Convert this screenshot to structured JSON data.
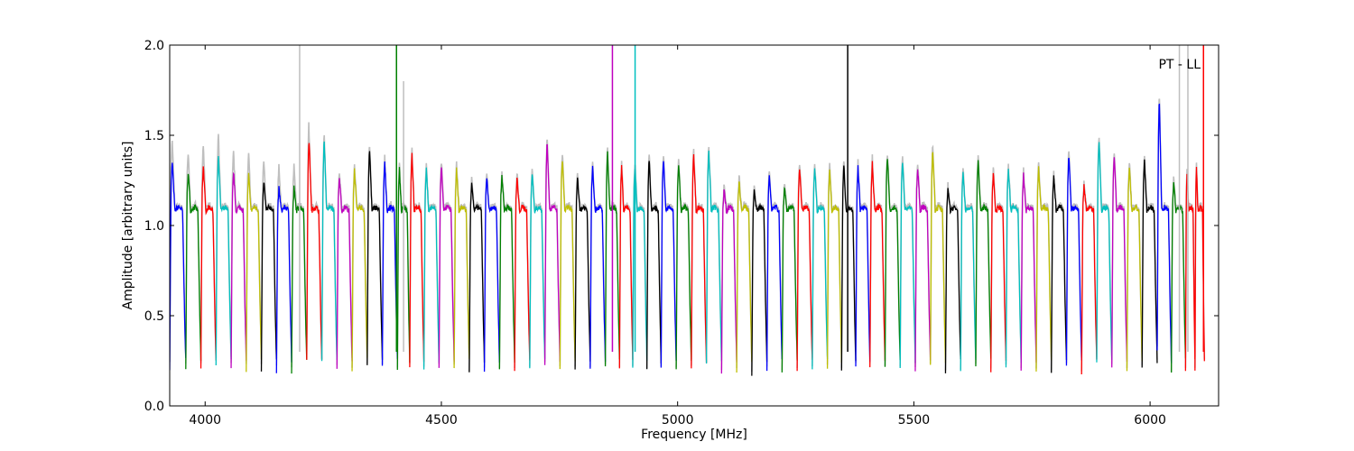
{
  "chart_data": {
    "type": "line",
    "title": "",
    "annotation": "PT - LL",
    "xlabel": "Frequency [MHz]",
    "ylabel": "Amplitude [arbitrary units]",
    "xlim": [
      3925,
      6145
    ],
    "ylim": [
      0.0,
      2.0
    ],
    "xticks": [
      4000,
      4500,
      5000,
      5500,
      6000
    ],
    "yticks": [
      0.0,
      0.5,
      1.0,
      1.5,
      2.0
    ],
    "ytick_labels": [
      "0.0",
      "0.5",
      "1.0",
      "1.5",
      "2.0"
    ],
    "grid": false,
    "legend": "none",
    "palette": [
      "#0000ff",
      "#008000",
      "#ff0000",
      "#00bfbf",
      "#bf00bf",
      "#bfbf00",
      "#000000"
    ],
    "background_trace_color": "#bfbfbf",
    "channel_start_mhz": 3925,
    "channel_width_mhz": 32,
    "channels": [
      {
        "x0": 3925,
        "w": 34,
        "peak": 1.36,
        "color": "#0000ff"
      },
      {
        "x0": 3959,
        "w": 32,
        "peak": 1.3,
        "color": "#008000"
      },
      {
        "x0": 3991,
        "w": 32,
        "peak": 1.34,
        "color": "#ff0000"
      },
      {
        "x0": 4023,
        "w": 32,
        "peak": 1.39,
        "color": "#00bfbf"
      },
      {
        "x0": 4055,
        "w": 32,
        "peak": 1.3,
        "color": "#bf00bf"
      },
      {
        "x0": 4087,
        "w": 32,
        "peak": 1.28,
        "color": "#bfbf00"
      },
      {
        "x0": 4119,
        "w": 32,
        "peak": 1.24,
        "color": "#000000"
      },
      {
        "x0": 4151,
        "w": 32,
        "peak": 1.2,
        "color": "#0000ff"
      },
      {
        "x0": 4183,
        "w": 32,
        "peak": 1.2,
        "color": "#008000"
      },
      {
        "x0": 4215,
        "w": 32,
        "peak": 1.49,
        "color": "#ff0000"
      },
      {
        "x0": 4247,
        "w": 32,
        "peak": 1.49,
        "color": "#00bfbf"
      },
      {
        "x0": 4279,
        "w": 32,
        "peak": 1.27,
        "color": "#bf00bf"
      },
      {
        "x0": 4311,
        "w": 32,
        "peak": 1.31,
        "color": "#bfbf00"
      },
      {
        "x0": 4343,
        "w": 32,
        "peak": 1.43,
        "color": "#000000"
      },
      {
        "x0": 4375,
        "w": 32,
        "peak": 1.35,
        "color": "#0000ff"
      },
      {
        "x0": 4407,
        "w": 26,
        "peak": 1.32,
        "color": "#008000"
      },
      {
        "x0": 4433,
        "w": 30,
        "peak": 1.41,
        "color": "#ff0000"
      },
      {
        "x0": 4463,
        "w": 32,
        "peak": 1.31,
        "color": "#00bfbf"
      },
      {
        "x0": 4495,
        "w": 32,
        "peak": 1.33,
        "color": "#bf00bf"
      },
      {
        "x0": 4527,
        "w": 32,
        "peak": 1.31,
        "color": "#bfbf00"
      },
      {
        "x0": 4559,
        "w": 32,
        "peak": 1.24,
        "color": "#000000"
      },
      {
        "x0": 4591,
        "w": 32,
        "peak": 1.27,
        "color": "#0000ff"
      },
      {
        "x0": 4623,
        "w": 32,
        "peak": 1.28,
        "color": "#008000"
      },
      {
        "x0": 4655,
        "w": 32,
        "peak": 1.26,
        "color": "#ff0000"
      },
      {
        "x0": 4687,
        "w": 32,
        "peak": 1.29,
        "color": "#00bfbf"
      },
      {
        "x0": 4719,
        "w": 32,
        "peak": 1.48,
        "color": "#bf00bf"
      },
      {
        "x0": 4751,
        "w": 32,
        "peak": 1.38,
        "color": "#bfbf00"
      },
      {
        "x0": 4783,
        "w": 32,
        "peak": 1.27,
        "color": "#000000"
      },
      {
        "x0": 4815,
        "w": 32,
        "peak": 1.34,
        "color": "#0000ff"
      },
      {
        "x0": 4847,
        "w": 30,
        "peak": 1.41,
        "color": "#008000"
      },
      {
        "x0": 4877,
        "w": 28,
        "peak": 1.33,
        "color": "#ff0000"
      },
      {
        "x0": 4905,
        "w": 30,
        "peak": 1.33,
        "color": "#00bfbf"
      },
      {
        "x0": 4935,
        "w": 30,
        "peak": 1.38,
        "color": "#000000"
      },
      {
        "x0": 4965,
        "w": 32,
        "peak": 1.37,
        "color": "#0000ff"
      },
      {
        "x0": 4997,
        "w": 32,
        "peak": 1.35,
        "color": "#008000"
      },
      {
        "x0": 5029,
        "w": 32,
        "peak": 1.4,
        "color": "#ff0000"
      },
      {
        "x0": 5061,
        "w": 32,
        "peak": 1.42,
        "color": "#00bfbf"
      },
      {
        "x0": 5093,
        "w": 32,
        "peak": 1.19,
        "color": "#bf00bf"
      },
      {
        "x0": 5125,
        "w": 32,
        "peak": 1.24,
        "color": "#bfbf00"
      },
      {
        "x0": 5157,
        "w": 32,
        "peak": 1.19,
        "color": "#000000"
      },
      {
        "x0": 5189,
        "w": 32,
        "peak": 1.29,
        "color": "#0000ff"
      },
      {
        "x0": 5221,
        "w": 32,
        "peak": 1.21,
        "color": "#008000"
      },
      {
        "x0": 5253,
        "w": 32,
        "peak": 1.33,
        "color": "#ff0000"
      },
      {
        "x0": 5285,
        "w": 32,
        "peak": 1.33,
        "color": "#00bfbf"
      },
      {
        "x0": 5317,
        "w": 30,
        "peak": 1.32,
        "color": "#bfbf00"
      },
      {
        "x0": 5347,
        "w": 30,
        "peak": 1.34,
        "color": "#000000"
      },
      {
        "x0": 5377,
        "w": 30,
        "peak": 1.33,
        "color": "#0000ff"
      },
      {
        "x0": 5407,
        "w": 32,
        "peak": 1.35,
        "color": "#ff0000"
      },
      {
        "x0": 5439,
        "w": 32,
        "peak": 1.39,
        "color": "#008000"
      },
      {
        "x0": 5471,
        "w": 32,
        "peak": 1.37,
        "color": "#00bfbf"
      },
      {
        "x0": 5503,
        "w": 32,
        "peak": 1.33,
        "color": "#bf00bf"
      },
      {
        "x0": 5535,
        "w": 32,
        "peak": 1.43,
        "color": "#bfbf00"
      },
      {
        "x0": 5567,
        "w": 32,
        "peak": 1.2,
        "color": "#000000"
      },
      {
        "x0": 5599,
        "w": 32,
        "peak": 1.3,
        "color": "#00bfbf"
      },
      {
        "x0": 5631,
        "w": 32,
        "peak": 1.37,
        "color": "#008000"
      },
      {
        "x0": 5663,
        "w": 32,
        "peak": 1.29,
        "color": "#ff0000"
      },
      {
        "x0": 5695,
        "w": 32,
        "peak": 1.32,
        "color": "#00bfbf"
      },
      {
        "x0": 5727,
        "w": 32,
        "peak": 1.28,
        "color": "#bf00bf"
      },
      {
        "x0": 5759,
        "w": 32,
        "peak": 1.32,
        "color": "#bfbf00"
      },
      {
        "x0": 5791,
        "w": 32,
        "peak": 1.27,
        "color": "#000000"
      },
      {
        "x0": 5823,
        "w": 32,
        "peak": 1.4,
        "color": "#0000ff"
      },
      {
        "x0": 5855,
        "w": 32,
        "peak": 1.21,
        "color": "#ff0000"
      },
      {
        "x0": 5887,
        "w": 32,
        "peak": 1.5,
        "color": "#00bfbf"
      },
      {
        "x0": 5919,
        "w": 32,
        "peak": 1.4,
        "color": "#bf00bf"
      },
      {
        "x0": 5951,
        "w": 32,
        "peak": 1.33,
        "color": "#bfbf00"
      },
      {
        "x0": 5983,
        "w": 32,
        "peak": 1.37,
        "color": "#000000"
      },
      {
        "x0": 6015,
        "w": 30,
        "peak": 1.73,
        "color": "#0000ff"
      },
      {
        "x0": 6045,
        "w": 30,
        "peak": 1.24,
        "color": "#008000"
      },
      {
        "x0": 6075,
        "w": 20,
        "peak": 1.3,
        "color": "#ff0000"
      },
      {
        "x0": 6095,
        "w": 20,
        "peak": 1.32,
        "color": "#ff0000"
      }
    ],
    "spikes": [
      {
        "x": 4200,
        "y": 2.0,
        "color": "#bfbfbf"
      },
      {
        "x": 4405,
        "y": 2.0,
        "color": "#008000"
      },
      {
        "x": 4420,
        "y": 1.8,
        "color": "#bfbfbf"
      },
      {
        "x": 4862,
        "y": 2.0,
        "color": "#bf00bf"
      },
      {
        "x": 4910,
        "y": 2.0,
        "color": "#00bfbf"
      },
      {
        "x": 5360,
        "y": 2.0,
        "color": "#000000"
      },
      {
        "x": 6062,
        "y": 2.0,
        "color": "#bfbfbf"
      },
      {
        "x": 6080,
        "y": 2.0,
        "color": "#bfbfbf"
      },
      {
        "x": 6113,
        "y": 2.0,
        "color": "#ff0000"
      }
    ]
  }
}
